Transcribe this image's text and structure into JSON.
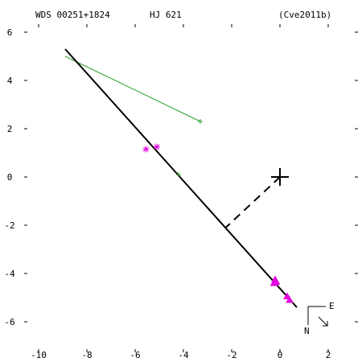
{
  "header": {
    "wds_id": "WDS 00251+1824",
    "discoverer": "HJ  621",
    "reference": "(Cve2011b)"
  },
  "compass": {
    "east_label": "E",
    "north_label": "N"
  },
  "chart_data": {
    "type": "scatter",
    "title": "",
    "xlabel": "",
    "ylabel": "",
    "xlim": [
      -11,
      3.3
    ],
    "ylim": [
      -7.7,
      6.3
    ],
    "x_ticks": [
      -10,
      -8,
      -6,
      -4,
      -2,
      0,
      2
    ],
    "y_ticks": [
      6,
      4,
      2,
      0,
      -2,
      -4,
      -6
    ],
    "grid": false,
    "primary": {
      "x": 0,
      "y": 0
    },
    "orbit_line": {
      "x": [
        -8.9,
        0.7
      ],
      "y": [
        5.3,
        -5.4
      ]
    },
    "periastron_link": {
      "x": [
        0,
        -2.25
      ],
      "y": [
        0,
        -2.1
      ]
    },
    "residual_line": {
      "x": [
        -8.9,
        -3.3
      ],
      "y": [
        5.0,
        2.3
      ]
    },
    "series": [
      {
        "marker": "plus",
        "color": "#2ca02c",
        "points": [
          {
            "x": -3.3,
            "y": 2.3
          },
          {
            "x": -4.2,
            "y": 0.1
          }
        ]
      },
      {
        "marker": "asterisk",
        "color": "#e000e0",
        "points": [
          {
            "x": -5.55,
            "y": 1.15
          },
          {
            "x": -5.1,
            "y": 1.25
          }
        ]
      },
      {
        "marker": "triangle",
        "color": "#e000e0",
        "points": [
          {
            "x": -0.2,
            "y": -4.25
          },
          {
            "x": -0.25,
            "y": -4.4
          },
          {
            "x": -0.15,
            "y": -4.35
          },
          {
            "x": 0.3,
            "y": -4.95
          },
          {
            "x": 0.4,
            "y": -5.1
          }
        ]
      }
    ]
  }
}
